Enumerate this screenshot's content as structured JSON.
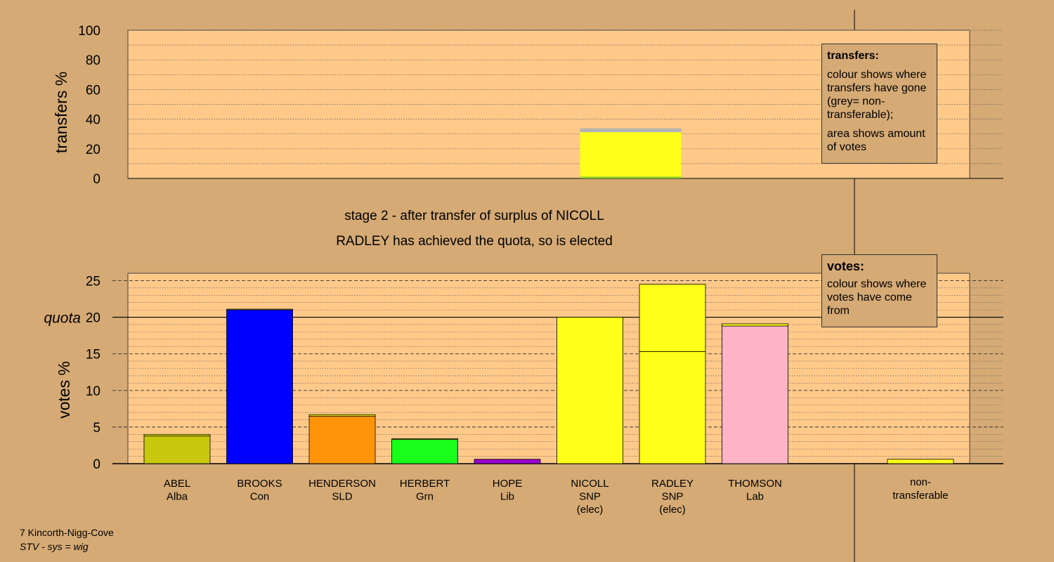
{
  "chart_data": {
    "type": "bar",
    "subtitle_lines": [
      "stage 2 - after transfer of surplus of NICOLL",
      "RADLEY has achieved the quota, so is elected"
    ],
    "transfers_chart": {
      "ylabel": "transfers %",
      "ylim": [
        0,
        100
      ],
      "yticks": [
        0,
        20,
        40,
        60,
        80,
        100
      ],
      "bars": [
        {
          "candidate": "NICOLL",
          "segments": [
            {
              "value": 1.2,
              "color": "#8ccc26"
            },
            {
              "value": 30.0,
              "color": "#ffff1a"
            },
            {
              "value": 2.6,
              "color": "#b3b3b3"
            }
          ]
        }
      ]
    },
    "votes_chart": {
      "ylabel": "votes %",
      "ylim": [
        0,
        26
      ],
      "yticks": [
        0,
        5,
        10,
        15,
        20,
        25
      ],
      "quota": 20,
      "quota_label": "quota",
      "categories": [
        {
          "name": "ABEL",
          "party": "Alba",
          "elected": ""
        },
        {
          "name": "BROOKS",
          "party": "Con",
          "elected": ""
        },
        {
          "name": "HENDERSON",
          "party": "SLD",
          "elected": ""
        },
        {
          "name": "HERBERT",
          "party": "Grn",
          "elected": ""
        },
        {
          "name": "HOPE",
          "party": "Lib",
          "elected": ""
        },
        {
          "name": "NICOLL",
          "party": "SNP",
          "elected": "(elec)"
        },
        {
          "name": "RADLEY",
          "party": "SNP",
          "elected": "(elec)"
        },
        {
          "name": "THOMSON",
          "party": "Lab",
          "elected": ""
        }
      ],
      "bars": [
        {
          "segments": [
            {
              "value": 3.8,
              "color": "#c8c80f"
            },
            {
              "value": 0.2,
              "color": "#ffff1a"
            }
          ]
        },
        {
          "segments": [
            {
              "value": 21.0,
              "color": "#0000ff"
            },
            {
              "value": 0.1,
              "color": "#ffff1a"
            }
          ]
        },
        {
          "segments": [
            {
              "value": 6.5,
              "color": "#ff9408"
            },
            {
              "value": 0.2,
              "color": "#ffff1a"
            }
          ]
        },
        {
          "segments": [
            {
              "value": 3.3,
              "color": "#1aff1a"
            },
            {
              "value": 0.1,
              "color": "#ffff1a"
            }
          ]
        },
        {
          "segments": [
            {
              "value": 0.6,
              "color": "#9900cc"
            }
          ]
        },
        {
          "segments": [
            {
              "value": 20.0,
              "color": "#ffff1a"
            }
          ]
        },
        {
          "segments": [
            {
              "value": 15.3,
              "color": "#ffff1a"
            },
            {
              "value": 9.2,
              "color": "#ffff1a"
            }
          ]
        },
        {
          "segments": [
            {
              "value": 18.8,
              "color": "#ffb3c6"
            },
            {
              "value": 0.3,
              "color": "#ffff1a"
            }
          ]
        }
      ],
      "nontransferable": {
        "label_lines": [
          "non-",
          "transferable"
        ],
        "value": 0.6,
        "color": "#ffff1a"
      }
    }
  },
  "legend_transfers": {
    "heading": "transfers:",
    "text1": "colour shows where transfers have gone (grey= non-transferable);",
    "text2": "area shows amount of votes"
  },
  "legend_votes": {
    "heading": "votes:",
    "text1": "colour shows where votes have come from"
  },
  "footer": {
    "ward": "7 Kincorth-Nigg-Cove",
    "system": "STV - sys = wig"
  }
}
